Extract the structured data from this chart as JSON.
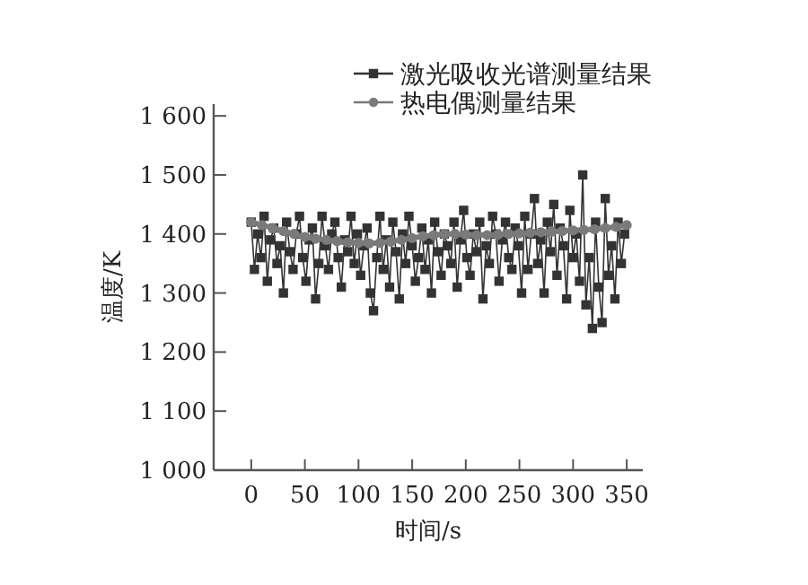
{
  "chart_data": {
    "type": "line",
    "xlabel": "时间/s",
    "ylabel": "温度/K",
    "legend": "top right",
    "xlim": [
      -35,
      365
    ],
    "ylim": [
      1000,
      1620
    ],
    "xticks": [
      0,
      50,
      100,
      150,
      200,
      250,
      300,
      350
    ],
    "yticks": [
      {
        "value": 1000,
        "label": "1 000"
      },
      {
        "value": 1100,
        "label": "1 100"
      },
      {
        "value": 1200,
        "label": "1 200"
      },
      {
        "value": 1300,
        "label": "1 300"
      },
      {
        "value": 1400,
        "label": "1 400"
      },
      {
        "value": 1500,
        "label": "1 500"
      },
      {
        "value": 1600,
        "label": "1 600"
      }
    ],
    "series": [
      {
        "name": "激光吸收光谱测量结果",
        "color": "#333333",
        "marker": "square",
        "x": [
          0,
          3,
          6,
          9,
          12,
          15,
          18,
          21,
          24,
          27,
          30,
          33,
          36,
          39,
          42,
          45,
          48,
          51,
          54,
          57,
          60,
          63,
          66,
          69,
          72,
          75,
          78,
          81,
          84,
          87,
          90,
          93,
          96,
          99,
          102,
          105,
          108,
          111,
          114,
          117,
          120,
          123,
          126,
          129,
          132,
          135,
          138,
          141,
          144,
          147,
          150,
          153,
          156,
          159,
          162,
          165,
          168,
          171,
          174,
          177,
          180,
          183,
          186,
          189,
          192,
          195,
          198,
          201,
          204,
          207,
          210,
          213,
          216,
          219,
          222,
          225,
          228,
          231,
          234,
          237,
          240,
          243,
          246,
          249,
          252,
          255,
          258,
          261,
          264,
          267,
          270,
          273,
          276,
          279,
          282,
          285,
          288,
          291,
          294,
          297,
          300,
          303,
          306,
          309,
          312,
          315,
          318,
          321,
          324,
          327,
          330,
          333,
          336,
          339,
          342,
          345,
          348
        ],
        "values": [
          1420,
          1340,
          1400,
          1360,
          1430,
          1320,
          1390,
          1410,
          1350,
          1380,
          1300,
          1420,
          1370,
          1340,
          1400,
          1430,
          1360,
          1320,
          1390,
          1410,
          1290,
          1350,
          1430,
          1380,
          1340,
          1400,
          1420,
          1360,
          1310,
          1390,
          1370,
          1430,
          1350,
          1400,
          1330,
          1380,
          1410,
          1300,
          1270,
          1360,
          1430,
          1340,
          1390,
          1310,
          1420,
          1370,
          1290,
          1400,
          1350,
          1430,
          1380,
          1320,
          1360,
          1410,
          1340,
          1390,
          1300,
          1420,
          1370,
          1330,
          1400,
          1380,
          1350,
          1420,
          1310,
          1390,
          1440,
          1360,
          1330,
          1400,
          1370,
          1420,
          1290,
          1380,
          1350,
          1430,
          1400,
          1320,
          1390,
          1420,
          1360,
          1340,
          1410,
          1380,
          1300,
          1430,
          1340,
          1400,
          1460,
          1350,
          1390,
          1300,
          1420,
          1370,
          1450,
          1330,
          1410,
          1380,
          1290,
          1440,
          1360,
          1400,
          1320,
          1500,
          1280,
          1360,
          1240,
          1420,
          1310,
          1250,
          1460,
          1330,
          1380,
          1290,
          1420,
          1350,
          1400
        ]
      },
      {
        "name": "热电偶测量结果",
        "color": "#7a7a7a",
        "marker": "circle",
        "x": [
          0,
          10,
          20,
          30,
          40,
          50,
          60,
          70,
          80,
          90,
          100,
          110,
          120,
          130,
          140,
          150,
          160,
          170,
          180,
          190,
          200,
          210,
          220,
          230,
          240,
          250,
          260,
          270,
          280,
          290,
          300,
          310,
          320,
          330,
          340,
          350
        ],
        "values": [
          1420,
          1415,
          1410,
          1405,
          1400,
          1395,
          1392,
          1390,
          1388,
          1386,
          1385,
          1384,
          1385,
          1387,
          1390,
          1393,
          1396,
          1398,
          1400,
          1400,
          1399,
          1398,
          1398,
          1399,
          1400,
          1401,
          1402,
          1403,
          1404,
          1405,
          1406,
          1407,
          1408,
          1410,
          1412,
          1415
        ]
      }
    ]
  }
}
